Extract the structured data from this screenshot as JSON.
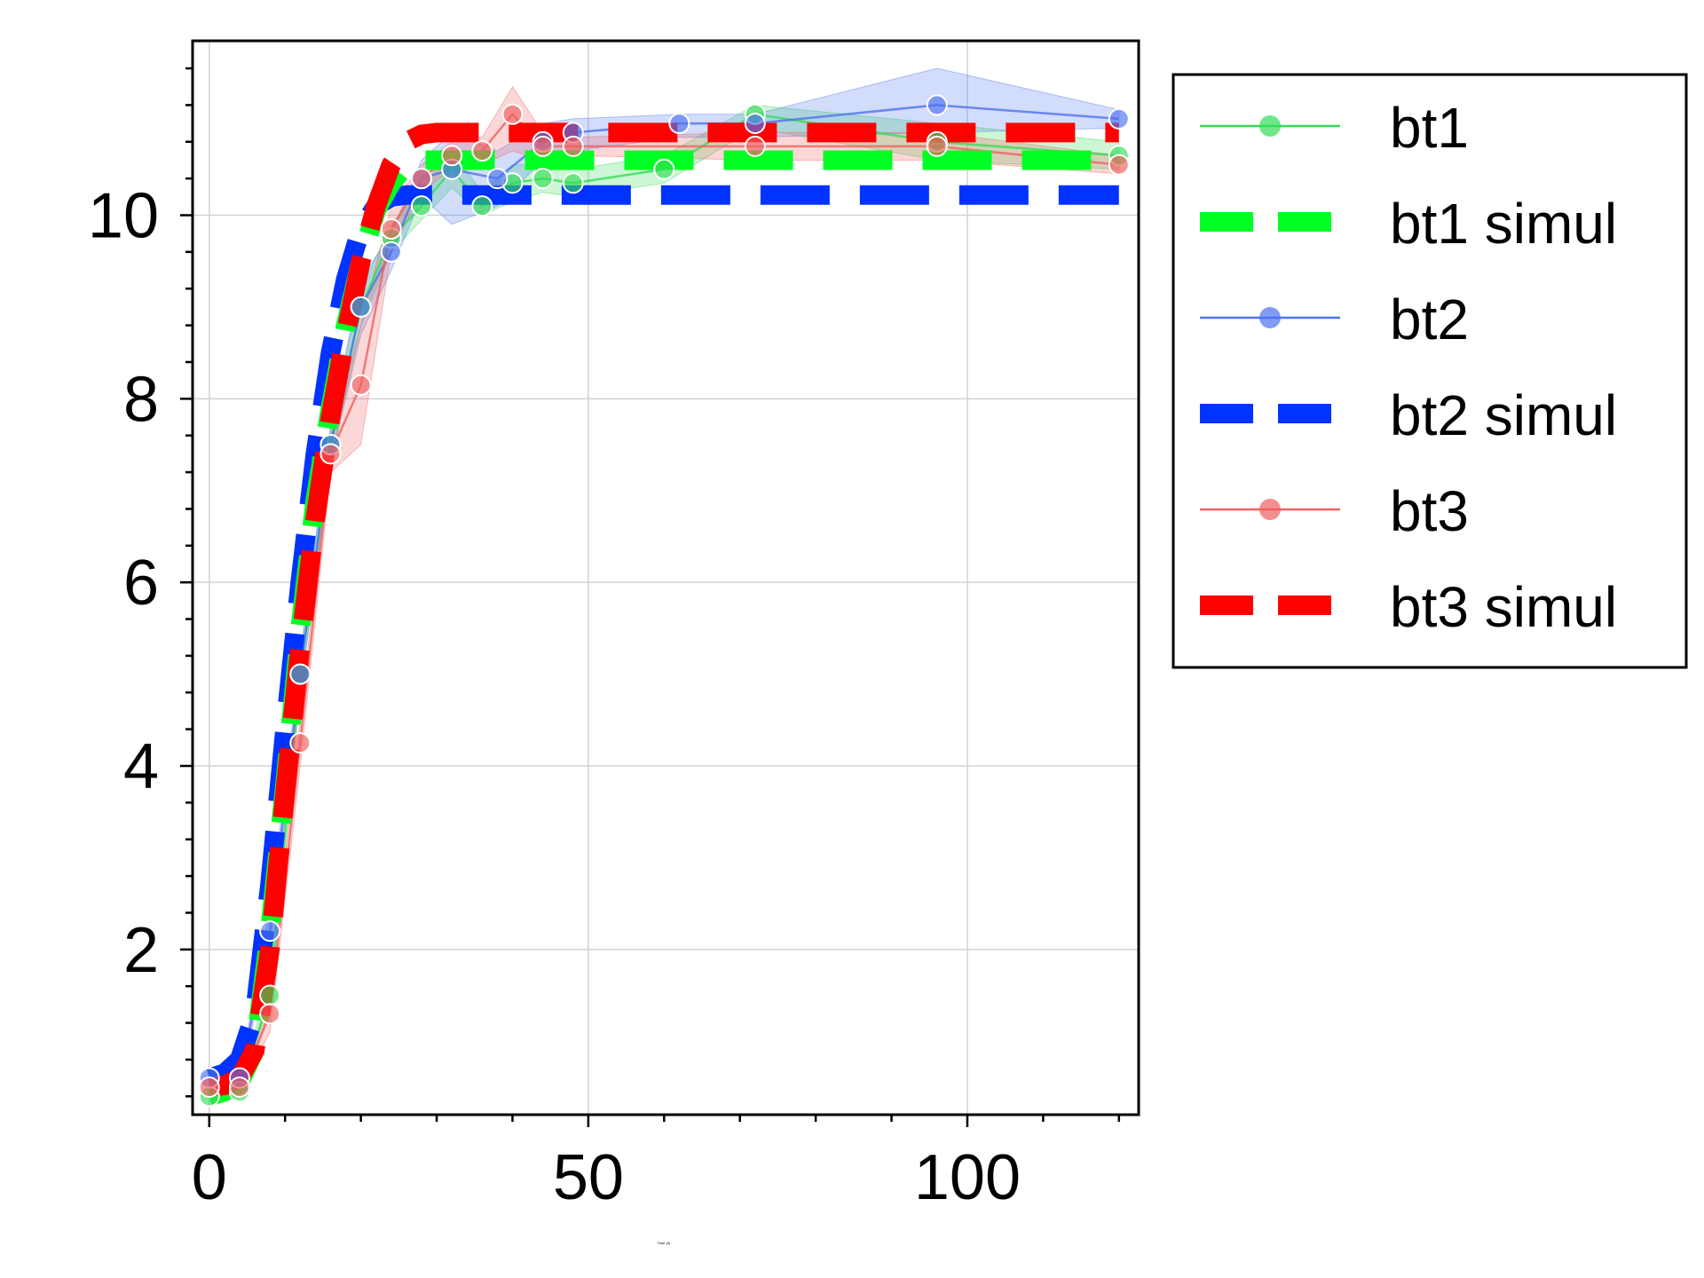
{
  "chart_data": {
    "type": "line",
    "title": "",
    "xlabel": "Time (h)",
    "ylabel": "",
    "xlim": [
      -2.2,
      122.6
    ],
    "ylim": [
      0.2,
      11.9
    ],
    "x_ticks": [
      0,
      50,
      100
    ],
    "y_ticks": [
      2,
      4,
      6,
      8,
      10
    ],
    "grid": true,
    "legend_position": "outside-right-top",
    "series": [
      {
        "name": "bt1",
        "style": "line-markers",
        "color": "#33dd55",
        "x": [
          0,
          4,
          8,
          12,
          16,
          20,
          24,
          28,
          32,
          36,
          40,
          44,
          48,
          60,
          72,
          96,
          120
        ],
        "y": [
          0.4,
          0.45,
          1.5,
          5.0,
          7.5,
          9.0,
          9.75,
          10.1,
          10.5,
          10.1,
          10.35,
          10.4,
          10.35,
          10.5,
          11.1,
          10.8,
          10.65
        ],
        "band_low": [
          0.35,
          0.4,
          1.3,
          4.8,
          7.3,
          8.8,
          9.6,
          9.95,
          10.3,
          10.0,
          10.15,
          10.25,
          10.2,
          10.35,
          10.95,
          10.6,
          10.5
        ],
        "band_high": [
          0.45,
          0.5,
          1.7,
          5.2,
          7.7,
          9.2,
          9.9,
          10.3,
          10.7,
          10.25,
          10.55,
          10.55,
          10.5,
          10.65,
          11.2,
          11.0,
          10.8
        ]
      },
      {
        "name": "bt1 simul",
        "style": "dashed",
        "color": "#00ff22",
        "x": [
          0,
          2,
          4,
          6,
          8,
          10,
          12,
          14,
          16,
          18,
          20,
          22,
          24,
          26,
          28,
          32,
          40,
          60,
          80,
          100,
          120
        ],
        "y": [
          0.4,
          0.45,
          0.55,
          0.9,
          2.2,
          3.8,
          5.5,
          6.9,
          7.9,
          8.8,
          9.5,
          10.05,
          10.35,
          10.55,
          10.6,
          10.6,
          10.6,
          10.6,
          10.6,
          10.6,
          10.6
        ]
      },
      {
        "name": "bt2",
        "style": "line-markers",
        "color": "#4d72ee",
        "x": [
          0,
          4,
          8,
          12,
          16,
          20,
          24,
          28,
          32,
          38,
          44,
          48,
          62,
          72,
          96,
          120
        ],
        "y": [
          0.6,
          0.6,
          2.2,
          5.0,
          7.5,
          9.0,
          9.6,
          10.4,
          10.5,
          10.4,
          10.8,
          10.9,
          11.0,
          11.0,
          11.2,
          11.05
        ],
        "band_low": [
          0.55,
          0.55,
          2.0,
          4.8,
          7.3,
          8.7,
          9.4,
          10.2,
          9.9,
          10.1,
          10.6,
          10.7,
          10.85,
          10.85,
          10.9,
          10.95
        ],
        "band_high": [
          0.65,
          0.65,
          2.4,
          5.2,
          7.7,
          9.3,
          9.8,
          10.6,
          10.9,
          10.7,
          11.0,
          11.05,
          11.1,
          11.1,
          11.6,
          11.15
        ]
      },
      {
        "name": "bt2 simul",
        "style": "dashed",
        "color": "#0033ff",
        "x": [
          0,
          2,
          4,
          6,
          8,
          10,
          12,
          14,
          16,
          18,
          20,
          22,
          24,
          26,
          30,
          40,
          60,
          80,
          100,
          120
        ],
        "y": [
          0.6,
          0.65,
          0.8,
          1.3,
          2.7,
          4.4,
          6.0,
          7.4,
          8.5,
          9.3,
          9.85,
          10.1,
          10.2,
          10.22,
          10.22,
          10.22,
          10.22,
          10.22,
          10.22,
          10.22
        ]
      },
      {
        "name": "bt3",
        "style": "line-markers",
        "color": "#f06060",
        "x": [
          0,
          4,
          8,
          12,
          16,
          20,
          24,
          28,
          32,
          36,
          40,
          44,
          48,
          72,
          96,
          120
        ],
        "y": [
          0.5,
          0.5,
          1.3,
          4.25,
          7.4,
          8.15,
          9.85,
          10.4,
          10.65,
          10.7,
          11.1,
          10.75,
          10.75,
          10.75,
          10.75,
          10.55
        ],
        "band_low": [
          0.45,
          0.45,
          1.1,
          4.0,
          7.2,
          7.5,
          9.6,
          10.25,
          10.5,
          10.55,
          10.7,
          10.6,
          10.65,
          10.6,
          10.6,
          10.45
        ],
        "band_high": [
          0.55,
          0.55,
          1.5,
          4.5,
          7.6,
          8.8,
          10.1,
          10.55,
          10.8,
          10.85,
          11.4,
          10.9,
          10.85,
          10.9,
          10.9,
          10.65
        ]
      },
      {
        "name": "bt3 simul",
        "style": "dashed",
        "color": "#ff0000",
        "x": [
          0,
          2,
          4,
          6,
          8,
          10,
          12,
          14,
          16,
          18,
          20,
          22,
          24,
          26,
          28,
          30,
          40,
          60,
          80,
          100,
          120
        ],
        "y": [
          0.5,
          0.52,
          0.6,
          0.9,
          2.0,
          3.7,
          5.3,
          6.7,
          7.8,
          8.7,
          9.5,
          10.1,
          10.55,
          10.8,
          10.88,
          10.9,
          10.9,
          10.9,
          10.9,
          10.9,
          10.9
        ]
      }
    ]
  }
}
